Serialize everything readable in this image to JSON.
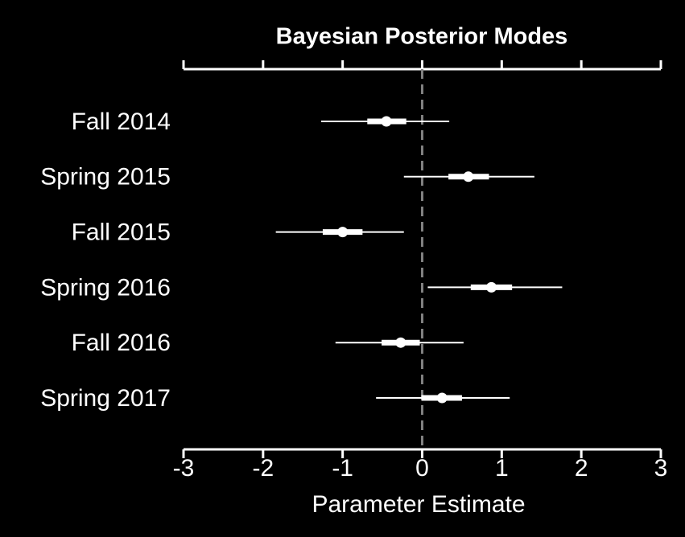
{
  "chart_data": {
    "type": "forest",
    "title": "Bayesian Posterior Modes",
    "x_label": "Parameter Estimate",
    "categories": [
      "Fall 2014",
      "Spring 2015",
      "Fall 2015",
      "Spring 2016",
      "Fall 2016",
      "Spring 2017"
    ],
    "values": [
      -0.45,
      0.58,
      -1.0,
      0.87,
      -0.27,
      0.25
    ],
    "inner_intervals": [
      [
        -0.69,
        -0.2
      ],
      [
        0.33,
        0.84
      ],
      [
        -1.25,
        -0.75
      ],
      [
        0.61,
        1.13
      ],
      [
        -0.51,
        -0.03
      ],
      [
        -0.01,
        0.5
      ]
    ],
    "outer_intervals": [
      [
        -1.27,
        0.34
      ],
      [
        -0.23,
        1.41
      ],
      [
        -1.84,
        -0.23
      ],
      [
        0.07,
        1.76
      ],
      [
        -1.09,
        0.52
      ],
      [
        -0.58,
        1.1
      ]
    ],
    "xlim": [
      -3,
      3
    ],
    "xticks": [
      -3,
      -2,
      -1,
      0,
      1,
      2,
      3
    ],
    "reference_line": 0,
    "color": "#ffffff",
    "reference_color": "#808080"
  }
}
